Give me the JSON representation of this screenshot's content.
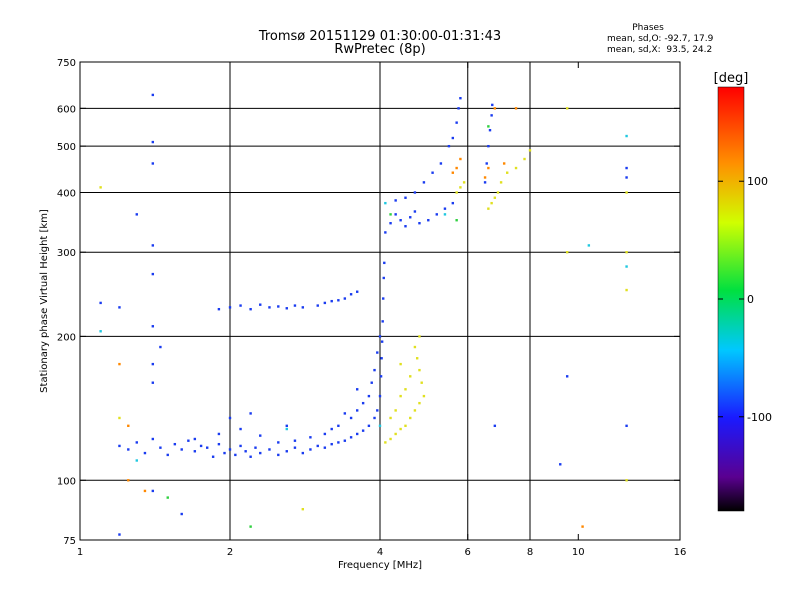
{
  "chart_data": {
    "type": "scatter",
    "title": "Tromsø 20151129 01:30:00-01:31:43",
    "subtitle": "RwPretec (8p)",
    "xlabel": "Frequency [MHz]",
    "ylabel": "Stationary phase Virtual Height [km]",
    "x_scale": "log2",
    "y_scale": "log",
    "xlim": [
      1,
      16
    ],
    "ylim": [
      75,
      750
    ],
    "x_ticks": [
      1,
      2,
      4,
      6,
      8,
      10,
      16
    ],
    "y_ticks": [
      75,
      100,
      200,
      300,
      400,
      500,
      600,
      750
    ],
    "x_grid": [
      2,
      4,
      6,
      8
    ],
    "y_grid": [
      100,
      200,
      300,
      400,
      500,
      600
    ],
    "grid": true,
    "info": {
      "title": "Phases",
      "line1": "mean, sd,O: -92.7, 17.9",
      "line2": "mean, sd,X:  93.5, 24.2"
    },
    "colorbar": {
      "label": "[deg]",
      "range": [
        -180,
        180
      ],
      "ticks": [
        100,
        0,
        -100
      ],
      "scale": "rainbow"
    },
    "series": [
      {
        "mode": "O",
        "color": "#1a3cf0",
        "points": [
          [
            1.2,
            118
          ],
          [
            1.25,
            116
          ],
          [
            1.3,
            120
          ],
          [
            1.35,
            114
          ],
          [
            1.4,
            122
          ],
          [
            1.45,
            117
          ],
          [
            1.5,
            113
          ],
          [
            1.55,
            119
          ],
          [
            1.6,
            116
          ],
          [
            1.65,
            121
          ],
          [
            1.7,
            115
          ],
          [
            1.75,
            118
          ],
          [
            1.8,
            117
          ],
          [
            1.85,
            112
          ],
          [
            1.9,
            119
          ],
          [
            1.95,
            114
          ],
          [
            2.0,
            116
          ],
          [
            2.05,
            113
          ],
          [
            2.1,
            118
          ],
          [
            2.15,
            115
          ],
          [
            2.2,
            112
          ],
          [
            2.25,
            117
          ],
          [
            2.3,
            114
          ],
          [
            2.4,
            116
          ],
          [
            2.5,
            113
          ],
          [
            2.6,
            115
          ],
          [
            2.7,
            117
          ],
          [
            2.8,
            114
          ],
          [
            2.9,
            116
          ],
          [
            3.0,
            118
          ],
          [
            3.1,
            117
          ],
          [
            3.2,
            119
          ],
          [
            3.3,
            120
          ],
          [
            3.4,
            121
          ],
          [
            3.5,
            123
          ],
          [
            3.6,
            125
          ],
          [
            3.7,
            127
          ],
          [
            3.8,
            130
          ],
          [
            3.9,
            135
          ],
          [
            3.95,
            140
          ],
          [
            4.0,
            150
          ],
          [
            4.02,
            165
          ],
          [
            4.03,
            180
          ],
          [
            4.04,
            195
          ],
          [
            4.05,
            215
          ],
          [
            4.06,
            240
          ],
          [
            4.07,
            265
          ],
          [
            4.08,
            285
          ],
          [
            3.5,
            135
          ],
          [
            3.6,
            140
          ],
          [
            3.7,
            145
          ],
          [
            3.8,
            150
          ],
          [
            3.85,
            160
          ],
          [
            3.9,
            170
          ],
          [
            3.95,
            185
          ],
          [
            4.0,
            200
          ],
          [
            3.3,
            130
          ],
          [
            3.2,
            128
          ],
          [
            3.4,
            138
          ],
          [
            3.6,
            155
          ],
          [
            1.7,
            122
          ],
          [
            1.9,
            125
          ],
          [
            2.1,
            128
          ],
          [
            2.3,
            124
          ],
          [
            2.5,
            120
          ],
          [
            2.7,
            121
          ],
          [
            2.9,
            123
          ],
          [
            3.1,
            125
          ],
          [
            2.0,
            135
          ],
          [
            2.2,
            138
          ],
          [
            2.6,
            130
          ],
          [
            1.9,
            228
          ],
          [
            2.0,
            230
          ],
          [
            2.1,
            232
          ],
          [
            2.2,
            228
          ],
          [
            2.3,
            233
          ],
          [
            2.4,
            230
          ],
          [
            2.5,
            231
          ],
          [
            2.6,
            229
          ],
          [
            2.7,
            232
          ],
          [
            2.8,
            230
          ],
          [
            3.0,
            232
          ],
          [
            3.1,
            235
          ],
          [
            3.2,
            237
          ],
          [
            3.3,
            238
          ],
          [
            3.4,
            240
          ],
          [
            3.5,
            245
          ],
          [
            3.6,
            248
          ],
          [
            4.1,
            330
          ],
          [
            4.2,
            345
          ],
          [
            4.3,
            360
          ],
          [
            4.4,
            350
          ],
          [
            4.5,
            340
          ],
          [
            4.6,
            355
          ],
          [
            4.7,
            365
          ],
          [
            4.8,
            345
          ],
          [
            5.0,
            350
          ],
          [
            5.2,
            360
          ],
          [
            5.4,
            370
          ],
          [
            5.6,
            380
          ],
          [
            4.3,
            385
          ],
          [
            4.5,
            390
          ],
          [
            4.7,
            400
          ],
          [
            4.9,
            420
          ],
          [
            5.1,
            440
          ],
          [
            5.3,
            460
          ],
          [
            5.5,
            500
          ],
          [
            5.6,
            520
          ],
          [
            5.7,
            560
          ],
          [
            5.75,
            600
          ],
          [
            5.8,
            630
          ],
          [
            6.5,
            420
          ],
          [
            6.55,
            460
          ],
          [
            6.6,
            500
          ],
          [
            6.65,
            540
          ],
          [
            6.7,
            580
          ],
          [
            6.72,
            610
          ],
          [
            1.4,
            640
          ],
          [
            1.4,
            510
          ],
          [
            1.4,
            460
          ],
          [
            1.4,
            310
          ],
          [
            1.4,
            270
          ],
          [
            1.4,
            210
          ],
          [
            1.4,
            175
          ],
          [
            1.4,
            160
          ],
          [
            1.4,
            95
          ],
          [
            1.45,
            190
          ],
          [
            1.3,
            360
          ],
          [
            1.2,
            230
          ],
          [
            1.1,
            235
          ],
          [
            1.2,
            77
          ],
          [
            1.6,
            85
          ],
          [
            9.2,
            108
          ],
          [
            9.5,
            165
          ],
          [
            12.5,
            450
          ],
          [
            12.5,
            430
          ],
          [
            12.5,
            130
          ],
          [
            6.8,
            130
          ]
        ]
      },
      {
        "mode": "X",
        "color": "#e0e020",
        "points": [
          [
            4.1,
            120
          ],
          [
            4.2,
            122
          ],
          [
            4.3,
            125
          ],
          [
            4.4,
            128
          ],
          [
            4.5,
            130
          ],
          [
            4.6,
            135
          ],
          [
            4.7,
            140
          ],
          [
            4.8,
            145
          ],
          [
            4.9,
            150
          ],
          [
            4.85,
            160
          ],
          [
            4.8,
            170
          ],
          [
            4.75,
            180
          ],
          [
            4.7,
            190
          ],
          [
            4.3,
            140
          ],
          [
            4.4,
            150
          ],
          [
            4.5,
            155
          ],
          [
            4.6,
            165
          ],
          [
            4.2,
            135
          ],
          [
            4.4,
            175
          ],
          [
            5.7,
            400
          ],
          [
            5.8,
            410
          ],
          [
            5.9,
            420
          ],
          [
            6.6,
            370
          ],
          [
            6.7,
            380
          ],
          [
            6.8,
            390
          ],
          [
            6.9,
            400
          ],
          [
            7.0,
            420
          ],
          [
            7.2,
            440
          ],
          [
            7.5,
            450
          ],
          [
            7.8,
            470
          ],
          [
            8.0,
            490
          ],
          [
            1.1,
            410
          ],
          [
            9.5,
            600
          ],
          [
            9.5,
            300
          ],
          [
            12.5,
            400
          ],
          [
            12.5,
            300
          ],
          [
            12.5,
            250
          ],
          [
            12.5,
            100
          ],
          [
            2.8,
            87
          ],
          [
            1.2,
            135
          ],
          [
            4.8,
            200
          ]
        ]
      },
      {
        "mode": "O",
        "color": "#ff8800",
        "points": [
          [
            5.6,
            440
          ],
          [
            5.7,
            450
          ],
          [
            5.8,
            470
          ],
          [
            6.5,
            430
          ],
          [
            6.6,
            450
          ],
          [
            7.1,
            460
          ],
          [
            6.8,
            600
          ],
          [
            7.5,
            600
          ],
          [
            1.2,
            175
          ],
          [
            1.25,
            100
          ],
          [
            1.35,
            95
          ],
          [
            10.2,
            80
          ],
          [
            1.25,
            130
          ]
        ]
      },
      {
        "mode": "X",
        "color": "#20c8e0",
        "points": [
          [
            4.0,
            130
          ],
          [
            4.1,
            380
          ],
          [
            5.4,
            360
          ],
          [
            1.1,
            205
          ],
          [
            1.3,
            110
          ],
          [
            2.6,
            128
          ],
          [
            10.5,
            310
          ],
          [
            12.5,
            525
          ],
          [
            12.5,
            280
          ]
        ]
      },
      {
        "mode": "O",
        "color": "#30d040",
        "points": [
          [
            1.5,
            92
          ],
          [
            2.2,
            80
          ],
          [
            4.2,
            360
          ],
          [
            5.7,
            350
          ],
          [
            6.6,
            550
          ]
        ]
      }
    ]
  }
}
